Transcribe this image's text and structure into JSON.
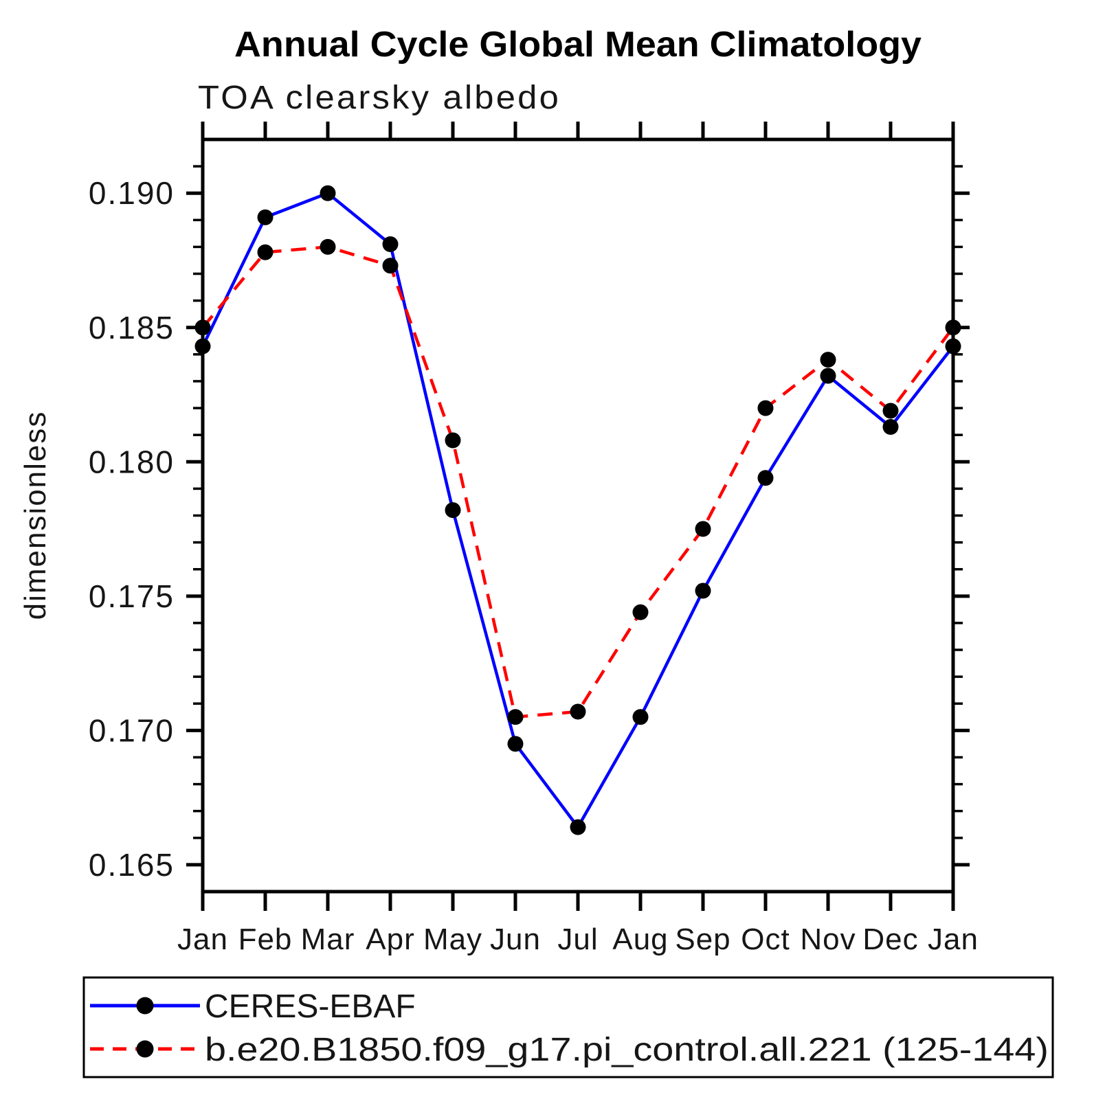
{
  "chart_data": {
    "type": "line",
    "title": "Annual Cycle Global Mean Climatology",
    "subtitle": "TOA clearsky albedo",
    "ylabel": "dimensionless",
    "xlabel": "",
    "x_categories": [
      "Jan",
      "Feb",
      "Mar",
      "Apr",
      "May",
      "Jun",
      "Jul",
      "Aug",
      "Sep",
      "Oct",
      "Nov",
      "Dec",
      "Jan"
    ],
    "ylim": [
      0.164,
      0.192
    ],
    "ytick_major": [
      0.165,
      0.17,
      0.175,
      0.18,
      0.185,
      0.19
    ],
    "ytick_labels": [
      "0.165",
      "0.170",
      "0.175",
      "0.180",
      "0.185",
      "0.190"
    ],
    "ytick_minor_step": 0.001,
    "grid": false,
    "legend_position": "bottom-left-box",
    "frame_color": "#000000",
    "marker": "circle",
    "marker_color": "#000000",
    "series": [
      {
        "name": "CERES-EBAF",
        "color": "#0000ff",
        "line_style": "solid",
        "values": [
          0.1843,
          0.1891,
          0.19,
          0.1881,
          0.1782,
          0.1695,
          0.1664,
          0.1705,
          0.1752,
          0.1794,
          0.1832,
          0.1813,
          0.1843
        ]
      },
      {
        "name": "b.e20.B1850.f09_g17.pi_control.all.221 (125-144)",
        "color": "#ff0000",
        "line_style": "dashed",
        "values": [
          0.185,
          0.1878,
          0.188,
          0.1873,
          0.1808,
          0.1705,
          0.1707,
          0.1744,
          0.1775,
          0.182,
          0.1838,
          0.1819,
          0.185
        ]
      }
    ]
  }
}
